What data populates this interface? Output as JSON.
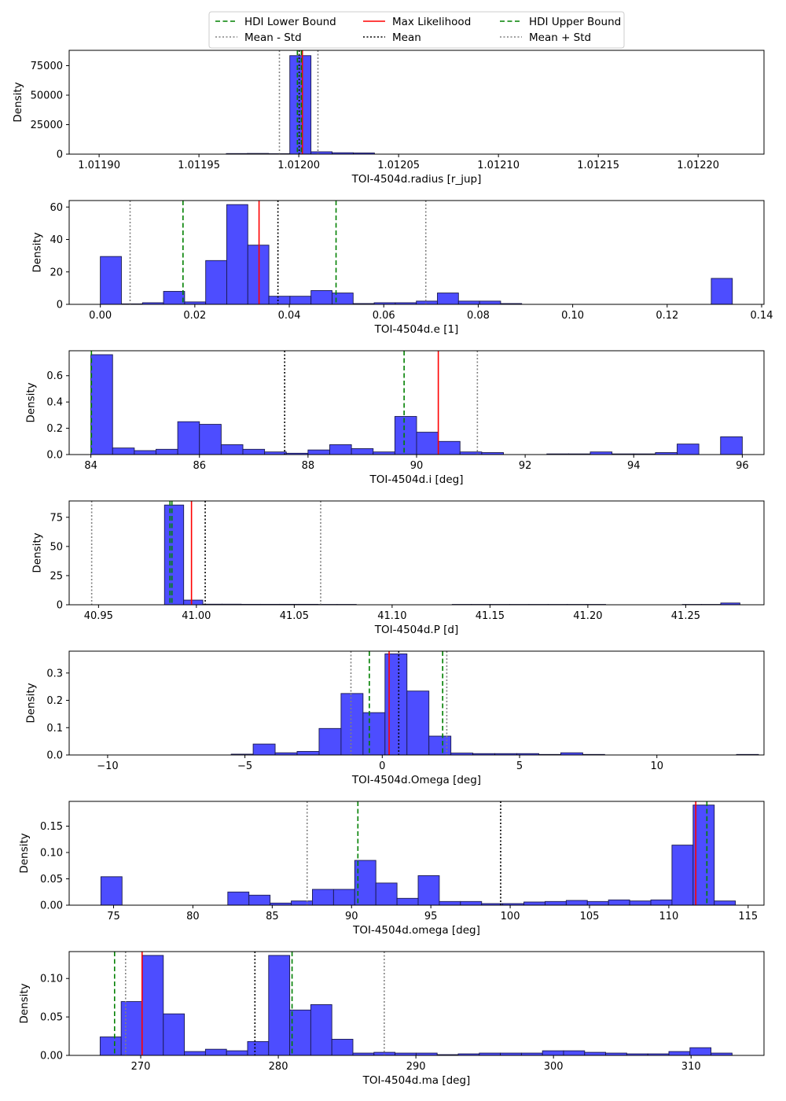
{
  "legend": {
    "placement": "top-center",
    "entries": [
      {
        "label": "HDI Lower Bound",
        "color": "#008000",
        "style": "dashed"
      },
      {
        "label": "Mean - Std",
        "color": "#808080",
        "style": "dotted"
      },
      {
        "label": "Max Likelihood",
        "color": "#ff0000",
        "style": "solid"
      },
      {
        "label": "Mean",
        "color": "#000000",
        "style": "dotted"
      },
      {
        "label": "HDI Upper Bound",
        "color": "#008000",
        "style": "dashed"
      },
      {
        "label": "Mean + Std",
        "color": "#808080",
        "style": "dotted"
      }
    ]
  },
  "colors": {
    "bar_fill": "#4d4dff",
    "bar_edge": "#1a1a4d"
  },
  "chart_data": [
    {
      "type": "bar",
      "xlabel": "TOI-4504d.radius [r_jup]",
      "ylabel": "Density",
      "xlim": [
        1.011885,
        1.012233
      ],
      "ylim": [
        0,
        88000
      ],
      "xticks": [
        1.0119,
        1.01195,
        1.012,
        1.01205,
        1.0121,
        1.01215,
        1.0122
      ],
      "xtick_labels": [
        "1.01190",
        "1.01195",
        "1.01200",
        "1.01205",
        "1.01210",
        "1.01215",
        "1.01220"
      ],
      "yticks": [
        0,
        25000,
        50000,
        75000
      ],
      "ytick_labels": [
        "0",
        "25000",
        "50000",
        "75000"
      ],
      "bins": {
        "start": 1.0119,
        "width": 1.07e-05,
        "count": 30
      },
      "values": [
        0,
        0,
        0,
        0,
        0,
        0,
        0,
        0,
        0,
        0,
        0,
        0,
        0,
        0,
        0,
        0,
        0,
        0,
        0,
        0,
        0,
        500,
        700,
        500,
        300,
        250,
        0,
        0,
        0,
        0
      ],
      "bars": [
        {
          "x0": 1.011896,
          "width": 3.25e-05,
          "value": 0
        },
        {
          "x0": 1.0119637,
          "width": 1.06e-05,
          "value": 500
        },
        {
          "x0": 1.0119743,
          "width": 1.06e-05,
          "value": 600
        },
        {
          "x0": 1.0119849,
          "width": 1.06e-05,
          "value": 400
        },
        {
          "x0": 1.0119955,
          "width": 1.06e-05,
          "value": 83500
        },
        {
          "x0": 1.0120061,
          "width": 1.06e-05,
          "value": 2000
        },
        {
          "x0": 1.0120167,
          "width": 1.06e-05,
          "value": 1200
        },
        {
          "x0": 1.0120273,
          "width": 1.06e-05,
          "value": 1000
        },
        {
          "x0": 1.0120379,
          "width": 3.25e-05,
          "value": 0
        },
        {
          "x0": 1.0120704,
          "width": 0.0001516,
          "value": 0
        }
      ],
      "lines": {
        "mean_minus_std": 1.0119903,
        "hdi_lower": 1.0119993,
        "mean": 1.0120002,
        "hdi_upper": 1.0120013,
        "max_likelihood": 1.0120018,
        "mean_plus_std": 1.0120096
      }
    },
    {
      "type": "bar",
      "xlabel": "TOI-4504d.e [1]",
      "ylabel": "Density",
      "xlim": [
        -0.0066,
        0.1405
      ],
      "ylim": [
        0,
        64
      ],
      "xticks": [
        0,
        0.02,
        0.04,
        0.06,
        0.08,
        0.1,
        0.12,
        0.14
      ],
      "xtick_labels": [
        "0.00",
        "0.02",
        "0.04",
        "0.06",
        "0.08",
        "0.10",
        "0.12",
        "0.14"
      ],
      "yticks": [
        0,
        20,
        40,
        60
      ],
      "ytick_labels": [
        "0",
        "20",
        "40",
        "60"
      ],
      "bins": {
        "start": 0.0,
        "width": 0.00446,
        "count": 30
      },
      "values": [
        29.5,
        0.3,
        1.0,
        8.0,
        1.5,
        27.0,
        61.5,
        36.5,
        5.0,
        5.0,
        8.5,
        7.0,
        0.5,
        1.0,
        1.0,
        2.0,
        7.0,
        2.0,
        2.0,
        0.5,
        0,
        0,
        0,
        0,
        0,
        0,
        0,
        0,
        0,
        16.0
      ],
      "lines": {
        "mean_minus_std": 0.0063,
        "hdi_lower": 0.0175,
        "max_likelihood": 0.0336,
        "mean": 0.0376,
        "hdi_upper": 0.0499,
        "mean_plus_std": 0.0689
      }
    },
    {
      "type": "bar",
      "xlabel": "TOI-4504d.i [deg]",
      "ylabel": "Density",
      "xlim": [
        83.6,
        96.4
      ],
      "ylim": [
        0,
        0.79
      ],
      "xticks": [
        84,
        86,
        88,
        90,
        92,
        94,
        96
      ],
      "xtick_labels": [
        "84",
        "86",
        "88",
        "90",
        "92",
        "94",
        "96"
      ],
      "yticks": [
        0,
        0.2,
        0.4,
        0.6
      ],
      "ytick_labels": [
        "0.0",
        "0.2",
        "0.4",
        "0.6"
      ],
      "bins": {
        "start": 84.0,
        "width": 0.4,
        "count": 30
      },
      "values": [
        0.76,
        0.05,
        0.03,
        0.04,
        0.25,
        0.23,
        0.075,
        0.04,
        0.02,
        0.01,
        0.035,
        0.075,
        0.045,
        0.02,
        0.29,
        0.17,
        0.1,
        0.02,
        0.015,
        0,
        0,
        0.005,
        0.005,
        0.02,
        0.005,
        0.005,
        0.015,
        0.08,
        0,
        0.135
      ],
      "lines": {
        "hdi_lower": 84.01,
        "mean": 87.57,
        "hdi_upper": 89.77,
        "max_likelihood": 90.4,
        "mean_plus_std": 91.12
      }
    },
    {
      "type": "bar",
      "xlabel": "TOI-4504d.P [d]",
      "ylabel": "Density",
      "xlim": [
        40.935,
        41.29
      ],
      "ylim": [
        0,
        89
      ],
      "xticks": [
        40.95,
        41.0,
        41.05,
        41.1,
        41.15,
        41.2,
        41.25
      ],
      "xtick_labels": [
        "40.95",
        "41.00",
        "41.05",
        "41.10",
        "41.15",
        "41.20",
        "41.25"
      ],
      "yticks": [
        0,
        25,
        50,
        75
      ],
      "ytick_labels": [
        "0",
        "25",
        "50",
        "75"
      ],
      "bins": {
        "start": 40.9837,
        "width": 0.0098,
        "count": 30
      },
      "values": [
        85.5,
        4.0,
        0.5,
        0.5,
        0.4,
        0.4,
        0.4,
        0.4,
        0.3,
        0.3,
        0,
        0,
        0,
        0,
        0,
        0.3,
        0.3,
        0.3,
        0.3,
        0.3,
        0.3,
        0.3,
        0.3,
        0,
        0,
        0,
        0,
        0.3,
        0.3,
        1.5
      ],
      "lines": {
        "mean_minus_std": 40.9465,
        "hdi_lower": 40.9865,
        "hdi_upper": 40.9875,
        "max_likelihood": 40.9975,
        "mean": 41.0045,
        "mean_plus_std": 41.0635
      }
    },
    {
      "type": "bar",
      "xlabel": "TOI-4504d.Omega [deg]",
      "ylabel": "Density",
      "xlim": [
        -11.4,
        13.9
      ],
      "ylim": [
        0,
        0.38
      ],
      "xticks": [
        -10,
        -5,
        0,
        5,
        10
      ],
      "xtick_labels": [
        "−10",
        "−5",
        "0",
        "5",
        "10"
      ],
      "yticks": [
        0,
        0.1,
        0.2,
        0.3
      ],
      "ytick_labels": [
        "0.0",
        "0.1",
        "0.2",
        "0.3"
      ],
      "bins": {
        "start": -10.3,
        "width": 0.8,
        "count": 30
      },
      "values": [
        0,
        0,
        0,
        0,
        0,
        0,
        0.003,
        0.04,
        0.008,
        0.013,
        0.097,
        0.225,
        0.155,
        0.37,
        0.234,
        0.069,
        0.007,
        0.005,
        0.005,
        0.005,
        0.002,
        0.008,
        0.002,
        0,
        0,
        0,
        0,
        0,
        0,
        0.002
      ],
      "lines": {
        "mean_minus_std": -1.14,
        "hdi_lower": -0.47,
        "max_likelihood": 0.25,
        "mean": 0.6,
        "hdi_upper": 2.2,
        "mean_plus_std": 2.35
      }
    },
    {
      "type": "bar",
      "xlabel": "TOI-4504d.omega [deg]",
      "ylabel": "Density",
      "xlim": [
        72.2,
        116.0
      ],
      "ylim": [
        0,
        0.197
      ],
      "xticks": [
        75,
        80,
        85,
        90,
        95,
        100,
        105,
        110,
        115
      ],
      "xtick_labels": [
        "75",
        "80",
        "85",
        "90",
        "95",
        "100",
        "105",
        "110",
        "115"
      ],
      "yticks": [
        0,
        0.05,
        0.1,
        0.15
      ],
      "ytick_labels": [
        "0.00",
        "0.05",
        "0.10",
        "0.15"
      ],
      "bins": {
        "start": 74.2,
        "width": 1.3333,
        "count": 30
      },
      "values": [
        0.054,
        0,
        0,
        0,
        0,
        0,
        0.025,
        0.019,
        0.004,
        0.008,
        0.03,
        0.03,
        0.085,
        0.042,
        0.013,
        0.056,
        0.007,
        0.007,
        0.003,
        0.003,
        0.006,
        0.007,
        0.009,
        0.007,
        0.01,
        0.008,
        0.01,
        0.114,
        0.19,
        0.008
      ],
      "lines": {
        "mean_minus_std": 87.2,
        "hdi_lower": 90.4,
        "mean": 99.4,
        "max_likelihood": 111.7,
        "hdi_upper": 112.4
      }
    },
    {
      "type": "bar",
      "xlabel": "TOI-4504d.ma [deg]",
      "ylabel": "Density",
      "xlim": [
        264.8,
        315.3
      ],
      "ylim": [
        0,
        0.135
      ],
      "xticks": [
        270,
        280,
        290,
        300,
        310
      ],
      "xtick_labels": [
        "270",
        "280",
        "290",
        "300",
        "310"
      ],
      "yticks": [
        0,
        0.05,
        0.1
      ],
      "ytick_labels": [
        "0.00",
        "0.05",
        "0.10"
      ],
      "bins": {
        "start": 267.05,
        "width": 1.531,
        "count": 30
      },
      "values": [
        0.024,
        0.07,
        0.13,
        0.054,
        0.005,
        0.008,
        0.006,
        0.018,
        0.13,
        0.059,
        0.066,
        0.021,
        0.003,
        0.004,
        0.003,
        0.003,
        0.001,
        0.002,
        0.003,
        0.003,
        0.003,
        0.006,
        0.006,
        0.004,
        0.003,
        0.002,
        0.002,
        0.005,
        0.01,
        0.003
      ],
      "lines": {
        "hdi_lower": 268.1,
        "mean_minus_std": 268.9,
        "max_likelihood": 270.1,
        "mean": 278.3,
        "hdi_upper": 281.0,
        "mean_plus_std": 287.7
      }
    }
  ]
}
